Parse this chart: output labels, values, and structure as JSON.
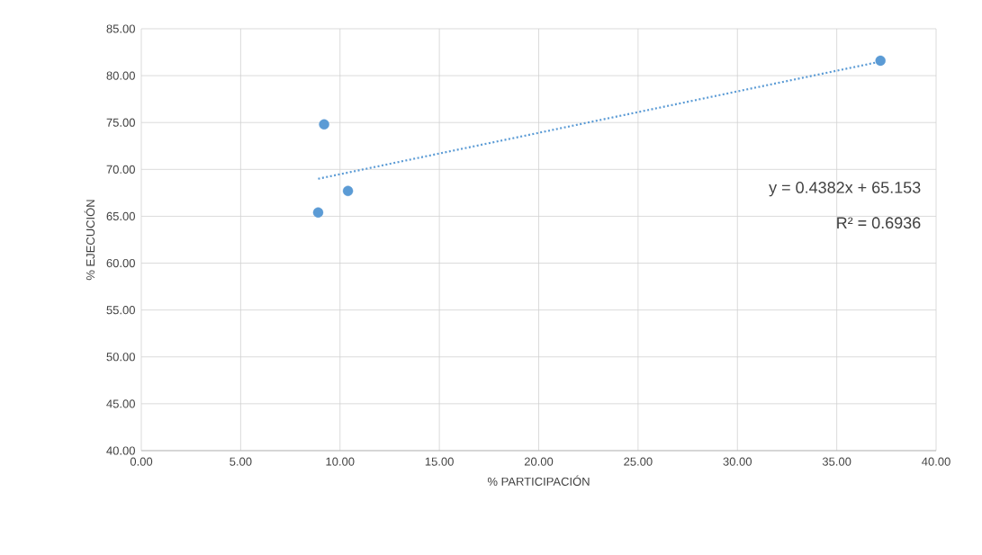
{
  "chart_data": {
    "type": "scatter",
    "xlabel": "% PARTICIPACIÓN",
    "ylabel": "% EJECUCIÓN",
    "series": [
      {
        "color": "#5b9bd5",
        "x": [
          8.9,
          9.2,
          10.4,
          37.2
        ],
        "values": [
          65.4,
          74.8,
          67.7,
          81.6
        ],
        "marker": "circle"
      },
      {
        "type": "line",
        "color": "#5b9bd5",
        "x": [
          8.9,
          37.2
        ],
        "values": [
          69.0,
          81.5
        ],
        "line_style": "dotted",
        "marker": "none"
      }
    ],
    "annotations": [
      "y = 0.4382x + 65.153",
      "R² = 0.6936"
    ],
    "xlim": [
      0,
      40
    ],
    "xticks": [
      {
        "value": 0,
        "label": "0.00"
      },
      {
        "value": 5,
        "label": "5.00"
      },
      {
        "value": 10,
        "label": "10.00"
      },
      {
        "value": 15,
        "label": "15.00"
      },
      {
        "value": 20,
        "label": "20.00"
      },
      {
        "value": 25,
        "label": "25.00"
      },
      {
        "value": 30,
        "label": "30.00"
      },
      {
        "value": 35,
        "label": "35.00"
      },
      {
        "value": 40,
        "label": "40.00"
      }
    ],
    "ylim": [
      40,
      85
    ],
    "yticks": [
      {
        "value": 40,
        "label": "40.00"
      },
      {
        "value": 45,
        "label": "45.00"
      },
      {
        "value": 50,
        "label": "50.00"
      },
      {
        "value": 55,
        "label": "55.00"
      },
      {
        "value": 60,
        "label": "60.00"
      },
      {
        "value": 65,
        "label": "65.00"
      },
      {
        "value": 70,
        "label": "70.00"
      },
      {
        "value": 75,
        "label": "75.00"
      },
      {
        "value": 80,
        "label": "80.00"
      },
      {
        "value": 85,
        "label": "85.00"
      }
    ],
    "grid": true
  }
}
